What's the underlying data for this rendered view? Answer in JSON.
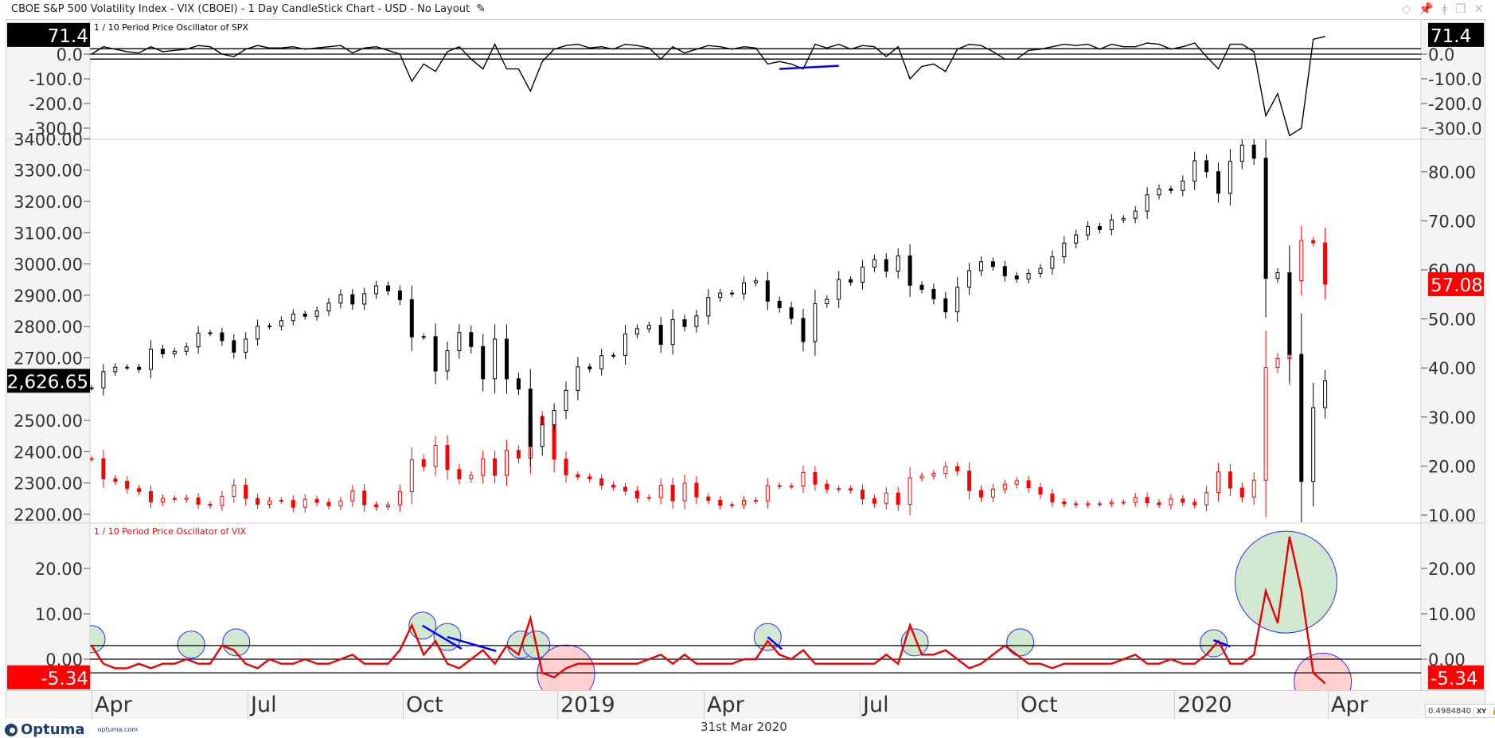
{
  "window": {
    "title": "CBOE S&P 500 Volatility Index - VIX (CBOEI) - 1 Day CandleStick Chart - USD - No Layout",
    "icons": [
      "diamond-icon",
      "pin-icon",
      "thermometer-icon",
      "restore-icon",
      "close-icon"
    ]
  },
  "footer": {
    "logo": "Optuma",
    "logo_url": "optuma.com",
    "date": "31st Mar 2020",
    "xy_value": "0.4984840",
    "xy_label": "XY"
  },
  "colors": {
    "spx": "#000000",
    "vix": "#ff0000",
    "trendline": "#0000ff",
    "circle_green": "#c8e3c8",
    "circle_red": "#ffc8c8"
  },
  "chart_data": [
    {
      "type": "line",
      "title": "1 / 10 Period Price Oscillator of SPX",
      "pane": "top",
      "ticks": [
        "0.0",
        "-100.0",
        "-200.0",
        "-300.0"
      ],
      "tick_values": [
        0,
        -100,
        -200,
        -300
      ],
      "last_value": "71.4",
      "levels": [
        22,
        0,
        -20
      ],
      "values": [
        0,
        30,
        20,
        10,
        5,
        30,
        10,
        15,
        20,
        35,
        30,
        0,
        -10,
        20,
        35,
        25,
        25,
        30,
        20,
        25,
        30,
        35,
        5,
        25,
        30,
        15,
        0,
        -110,
        -40,
        -70,
        10,
        30,
        -20,
        -60,
        40,
        -60,
        -60,
        -150,
        -30,
        20,
        35,
        40,
        25,
        30,
        20,
        40,
        35,
        25,
        -20,
        30,
        5,
        20,
        35,
        30,
        20,
        30,
        25,
        -40,
        -30,
        -40,
        -60,
        40,
        25,
        40,
        20,
        35,
        30,
        -10,
        30,
        -100,
        -50,
        -40,
        -70,
        20,
        40,
        35,
        10,
        -20,
        -20,
        15,
        20,
        30,
        40,
        35,
        40,
        20,
        40,
        30,
        30,
        45,
        40,
        20,
        30,
        45,
        -10,
        -60,
        40,
        40,
        10,
        -250,
        -160,
        -330,
        -300,
        60,
        71.4
      ],
      "trendlines": [
        {
          "from": [
            58,
            -60
          ],
          "to": [
            63,
            -47
          ]
        }
      ]
    },
    {
      "type": "candlestick",
      "pane": "main",
      "x_labels": [
        "Apr",
        "Jul",
        "Oct",
        "2019",
        "Apr",
        "Jul",
        "Oct",
        "2020",
        "Apr"
      ],
      "left_axis": {
        "ticks": [
          "2200.00",
          "2300.00",
          "2400.00",
          "2500.00",
          "2700.00",
          "2800.00",
          "2900.00",
          "3000.00",
          "3100.00",
          "3200.00",
          "3300.00",
          "3400.00"
        ],
        "tick_values": [
          2200,
          2300,
          2400,
          2500,
          2700,
          2800,
          2900,
          3000,
          3100,
          3200,
          3300,
          3400
        ],
        "last_value": "2,626.65"
      },
      "right_axis": {
        "ticks": [
          "10.00",
          "20.00",
          "30.00",
          "40.00",
          "50.00",
          "60.00",
          "70.00",
          "80.00"
        ],
        "tick_values": [
          10,
          20,
          30,
          40,
          50,
          60,
          70,
          80
        ],
        "last_value": "57.08"
      },
      "series": [
        {
          "name": "SPX",
          "axis": "left",
          "values": [
            2604,
            2656,
            2670,
            2670,
            2663,
            2728,
            2713,
            2721,
            2735,
            2779,
            2780,
            2755,
            2718,
            2760,
            2801,
            2802,
            2819,
            2840,
            2833,
            2850,
            2875,
            2902,
            2872,
            2905,
            2930,
            2914,
            2886,
            2767,
            2768,
            2658,
            2723,
            2781,
            2736,
            2633,
            2760,
            2633,
            2600,
            2417,
            2486,
            2532,
            2596,
            2671,
            2665,
            2707,
            2708,
            2776,
            2793,
            2804,
            2743,
            2822,
            2800,
            2834,
            2893,
            2907,
            2905,
            2940,
            2946,
            2881,
            2860,
            2826,
            2752,
            2873,
            2887,
            2950,
            2942,
            2990,
            3014,
            2977,
            3026,
            2932,
            2919,
            2889,
            2847,
            2926,
            2979,
            3007,
            2992,
            2962,
            2952,
            2970,
            2986,
            3023,
            3067,
            3093,
            3120,
            3110,
            3141,
            3146,
            3169,
            3221,
            3240,
            3235,
            3265,
            3330,
            3295,
            3226,
            3328,
            3380,
            3338,
            2954,
            2972,
            2711,
            2305,
            2541,
            2626.65
          ]
        },
        {
          "name": "VIX",
          "axis": "right",
          "values": [
            21.5,
            17.4,
            16.9,
            15.4,
            14.8,
            12.7,
            13.4,
            13.2,
            13.5,
            12.2,
            12.0,
            13.8,
            16.1,
            13.4,
            12.2,
            12.9,
            13.0,
            11.6,
            13.2,
            12.6,
            11.9,
            12.9,
            14.9,
            12.1,
            11.7,
            12.1,
            14.8,
            21.3,
            19.9,
            24.2,
            19.3,
            17.4,
            18.1,
            21.5,
            18.1,
            23.2,
            21.6,
            30.1,
            28.3,
            21.4,
            18.2,
            17.8,
            17.4,
            16.1,
            15.7,
            14.9,
            13.5,
            13.6,
            16.1,
            12.9,
            16.5,
            13.7,
            13.0,
            12.0,
            12.1,
            13.0,
            12.9,
            16.0,
            15.9,
            15.9,
            18.7,
            16.3,
            15.3,
            15.4,
            15.1,
            13.3,
            12.4,
            14.5,
            12.2,
            17.6,
            17.97,
            18.5,
            19.9,
            18.98,
            15.0,
            13.7,
            15.3,
            16.3,
            17.0,
            15.6,
            14.3,
            12.7,
            12.3,
            12.1,
            12.3,
            12.3,
            12.6,
            12.6,
            13.6,
            12.5,
            12.1,
            13.3,
            12.6,
            12.1,
            14.6,
            18.8,
            15.5,
            13.7,
            17.1,
            40.1,
            41.9,
            57.8,
            66.0,
            65.5,
            57.08
          ]
        }
      ]
    },
    {
      "type": "line",
      "title": "1 / 10 Period Price Oscillator of VIX",
      "pane": "bottom",
      "ticks": [
        "0.00",
        "10.00",
        "20.00"
      ],
      "tick_values": [
        0,
        10,
        20
      ],
      "last_value": "-5.34",
      "levels": [
        3,
        0,
        -3
      ],
      "values": [
        3,
        -1,
        -2,
        -2,
        -1,
        -2,
        -1,
        -1,
        0,
        -1,
        -1,
        3,
        2,
        -1,
        -2,
        0,
        -1,
        -1,
        0,
        -1,
        -1,
        0,
        1,
        -1,
        -1,
        -1,
        2,
        7.5,
        1,
        4,
        -1,
        -2,
        0,
        2,
        -1,
        3,
        1,
        9,
        -3,
        -4,
        -2,
        -1,
        -1,
        -1,
        -1,
        -1,
        -1,
        0,
        1,
        -1,
        1,
        -1,
        -1,
        -1,
        -1,
        0,
        0,
        4,
        1,
        0,
        2,
        -1,
        -1,
        -1,
        -1,
        -1,
        -1,
        1,
        -1,
        7.5,
        1,
        1,
        2,
        0,
        -2,
        -1,
        1,
        3,
        1,
        -1,
        -1,
        -2,
        -1,
        -1,
        -1,
        -1,
        -1,
        0,
        1,
        -1,
        -1,
        0,
        -1,
        -1,
        1,
        4,
        -1,
        -1,
        1,
        15,
        8,
        27,
        15,
        -3,
        -5.34
      ],
      "circles": [
        {
          "at": 0,
          "value": 4.4,
          "kind": "green"
        },
        {
          "at": 8.4,
          "value": 3.2,
          "kind": "green"
        },
        {
          "at": 12.2,
          "value": 3.7,
          "kind": "green"
        },
        {
          "at": 27.9,
          "value": 7.4,
          "kind": "green"
        },
        {
          "at": 30,
          "value": 4.9,
          "kind": "green"
        },
        {
          "at": 36.2,
          "value": 3.2,
          "kind": "green"
        },
        {
          "at": 37.5,
          "value": 3.2,
          "kind": "green"
        },
        {
          "at": 57,
          "value": 4.9,
          "kind": "green"
        },
        {
          "at": 69.4,
          "value": 3.7,
          "kind": "green"
        },
        {
          "at": 78.3,
          "value": 3.7,
          "kind": "green"
        },
        {
          "at": 94.6,
          "value": 3.5,
          "kind": "green"
        },
        {
          "at": 100.7,
          "value": 17,
          "kind": "green-large"
        },
        {
          "at": 40,
          "value": -3.2,
          "kind": "red"
        },
        {
          "at": 103.8,
          "value": -5,
          "kind": "red"
        }
      ],
      "trendlines": [
        {
          "from": [
            27.9,
            7.4
          ],
          "to": [
            31.2,
            2.3
          ]
        },
        {
          "from": [
            30,
            4.9
          ],
          "to": [
            34.1,
            1.8
          ]
        },
        {
          "from": [
            57,
            4.9
          ],
          "to": [
            58.2,
            2.2
          ]
        },
        {
          "from": [
            94.6,
            4.2
          ],
          "to": [
            96,
            2.8
          ]
        }
      ]
    }
  ]
}
